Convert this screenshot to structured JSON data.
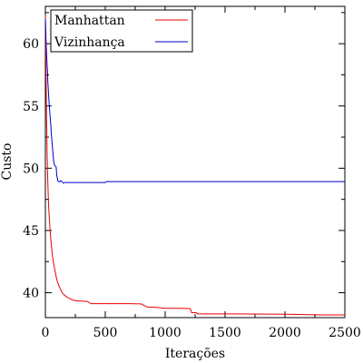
{
  "chart_data": {
    "type": "line",
    "xlabel": "Iterações",
    "ylabel": "Custo",
    "xlim": [
      0,
      2500
    ],
    "ylim": [
      38.0,
      63.0
    ],
    "x_ticks": [
      0,
      500,
      1000,
      1500,
      2000,
      2500
    ],
    "x_tick_labels": [
      "0",
      "500",
      "1000",
      "1500",
      "2000",
      "2500"
    ],
    "y_ticks": [
      40,
      45,
      50,
      55,
      60
    ],
    "y_tick_labels": [
      "40",
      "45",
      "50",
      "55",
      "60"
    ],
    "grid": false,
    "legend_position": "top-left",
    "series": [
      {
        "name": "Manhattan",
        "color": "#ee0000",
        "points": [
          [
            0,
            62.3
          ],
          [
            5,
            58
          ],
          [
            10,
            54
          ],
          [
            15,
            51
          ],
          [
            20,
            49
          ],
          [
            25,
            47.5
          ],
          [
            30,
            46.4
          ],
          [
            40,
            44.9
          ],
          [
            50,
            43.8
          ],
          [
            60,
            42.9
          ],
          [
            70,
            42.3
          ],
          [
            80,
            41.8
          ],
          [
            90,
            41.3
          ],
          [
            100,
            40.9
          ],
          [
            120,
            40.4
          ],
          [
            140,
            40.0
          ],
          [
            160,
            39.8
          ],
          [
            180,
            39.65
          ],
          [
            200,
            39.55
          ],
          [
            230,
            39.4
          ],
          [
            260,
            39.35
          ],
          [
            300,
            39.33
          ],
          [
            350,
            39.3
          ],
          [
            380,
            39.12
          ],
          [
            500,
            39.12
          ],
          [
            700,
            39.12
          ],
          [
            800,
            39.1
          ],
          [
            850,
            38.85
          ],
          [
            900,
            38.85
          ],
          [
            1000,
            38.75
          ],
          [
            1100,
            38.75
          ],
          [
            1150,
            38.75
          ],
          [
            1210,
            38.72
          ],
          [
            1220,
            38.4
          ],
          [
            1260,
            38.4
          ],
          [
            1270,
            38.3
          ],
          [
            1500,
            38.3
          ],
          [
            2000,
            38.27
          ],
          [
            2300,
            38.22
          ],
          [
            2500,
            38.22
          ]
        ]
      },
      {
        "name": "Vizinhança",
        "color": "#0000cc",
        "points": [
          [
            0,
            62.0
          ],
          [
            5,
            60.4
          ],
          [
            10,
            59.2
          ],
          [
            15,
            58.2
          ],
          [
            18,
            57.8
          ],
          [
            20,
            57.0
          ],
          [
            25,
            56.2
          ],
          [
            30,
            55.4
          ],
          [
            35,
            54.7
          ],
          [
            40,
            54.1
          ],
          [
            45,
            53.5
          ],
          [
            50,
            52.7
          ],
          [
            55,
            52.2
          ],
          [
            60,
            51.6
          ],
          [
            65,
            51.0
          ],
          [
            70,
            50.5
          ],
          [
            75,
            50.3
          ],
          [
            80,
            50.2
          ],
          [
            85,
            50.15
          ],
          [
            90,
            50.1
          ],
          [
            95,
            49.4
          ],
          [
            100,
            49.2
          ],
          [
            105,
            48.95
          ],
          [
            110,
            48.95
          ],
          [
            120,
            48.9
          ],
          [
            130,
            49.0
          ],
          [
            140,
            48.9
          ],
          [
            150,
            48.8
          ],
          [
            160,
            48.85
          ],
          [
            200,
            48.85
          ],
          [
            300,
            48.85
          ],
          [
            500,
            48.85
          ],
          [
            510,
            48.92
          ],
          [
            1000,
            48.92
          ],
          [
            2000,
            48.92
          ],
          [
            2500,
            48.92
          ]
        ]
      }
    ]
  }
}
